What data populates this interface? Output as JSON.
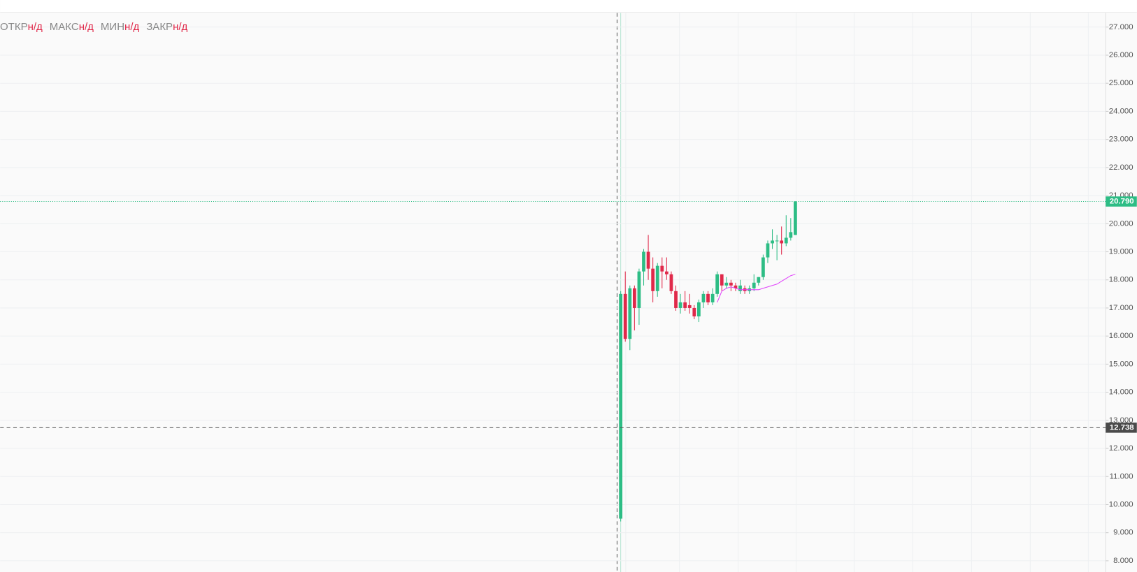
{
  "chart_data": {
    "type": "candlestick",
    "ohlc_legend": [
      {
        "label": "ОТКР",
        "value": "н/д"
      },
      {
        "label": "МАКС",
        "value": "н/д"
      },
      {
        "label": "МИН",
        "value": "н/д"
      },
      {
        "label": "ЗАКР",
        "value": "н/д"
      }
    ],
    "up_color": "#2dbd85",
    "down_color": "#e0294a",
    "open": [
      9.5,
      17.5,
      15.9,
      17.7,
      17.0,
      18.3,
      19.0,
      18.4,
      17.6,
      18.5,
      18.3,
      18.2,
      17.6,
      17.0,
      17.2,
      17.1,
      17.0,
      16.7,
      17.2,
      17.5,
      17.2,
      17.5,
      18.2,
      17.8,
      17.9,
      17.8,
      17.6,
      17.7,
      17.6,
      17.7,
      17.9,
      18.1,
      18.8,
      19.3,
      19.4,
      19.4,
      19.3,
      19.5,
      19.6
    ],
    "high": [
      17.6,
      18.3,
      17.8,
      17.8,
      18.4,
      19.1,
      19.6,
      18.8,
      18.6,
      18.8,
      18.8,
      18.3,
      17.8,
      17.5,
      17.6,
      17.5,
      17.1,
      17.3,
      17.6,
      17.6,
      17.7,
      18.3,
      18.2,
      18.1,
      18.0,
      17.9,
      18.0,
      17.8,
      17.8,
      18.2,
      18.1,
      18.9,
      19.4,
      19.8,
      19.6,
      19.9,
      20.3,
      20.2,
      20.8
    ],
    "low": [
      9.4,
      15.8,
      15.5,
      16.2,
      16.4,
      17.8,
      18.0,
      17.2,
      17.4,
      17.7,
      18.0,
      17.5,
      16.9,
      16.8,
      16.9,
      16.8,
      16.6,
      16.5,
      17.0,
      17.1,
      17.1,
      17.4,
      17.6,
      17.7,
      17.6,
      17.6,
      17.5,
      17.5,
      17.5,
      17.6,
      17.8,
      18.0,
      18.6,
      19.1,
      18.7,
      18.9,
      19.2,
      19.4,
      19.6
    ],
    "close": [
      17.5,
      15.9,
      17.7,
      17.0,
      18.3,
      19.0,
      18.4,
      17.6,
      18.5,
      18.3,
      18.2,
      17.6,
      17.0,
      17.2,
      17.0,
      17.0,
      16.7,
      17.2,
      17.5,
      17.2,
      17.5,
      18.2,
      17.8,
      17.9,
      17.8,
      17.7,
      17.8,
      17.6,
      17.7,
      17.9,
      18.1,
      18.8,
      19.3,
      19.4,
      19.4,
      19.3,
      19.5,
      19.7,
      20.79
    ],
    "ma": {
      "color": "#e040fb",
      "values": [
        null,
        null,
        null,
        null,
        null,
        null,
        null,
        null,
        null,
        null,
        null,
        null,
        null,
        null,
        null,
        null,
        null,
        null,
        null,
        null,
        null,
        17.2,
        17.6,
        17.7,
        17.75,
        17.7,
        17.65,
        17.65,
        17.65,
        17.65,
        17.65,
        17.7,
        17.75,
        17.8,
        17.85,
        17.95,
        18.05,
        18.15,
        18.2
      ]
    },
    "ylim": [
      7.6,
      27.5
    ],
    "yticks": [
      {
        "value": 8,
        "label": "8.000"
      },
      {
        "value": 9,
        "label": "9.000"
      },
      {
        "value": 10,
        "label": "10.000"
      },
      {
        "value": 11,
        "label": "11.000"
      },
      {
        "value": 12,
        "label": "12.000"
      },
      {
        "value": 13,
        "label": "13.000"
      },
      {
        "value": 14,
        "label": "14.000"
      },
      {
        "value": 15,
        "label": "15.000"
      },
      {
        "value": 16,
        "label": "16.000"
      },
      {
        "value": 17,
        "label": "17.000"
      },
      {
        "value": 18,
        "label": "18.000"
      },
      {
        "value": 19,
        "label": "19.000"
      },
      {
        "value": 20,
        "label": "20.000"
      },
      {
        "value": 21,
        "label": "21.000"
      },
      {
        "value": 22,
        "label": "22.000"
      },
      {
        "value": 23,
        "label": "23.000"
      },
      {
        "value": 24,
        "label": "24.000"
      },
      {
        "value": 25,
        "label": "25.000"
      },
      {
        "value": 26,
        "label": "26.000"
      },
      {
        "value": 27,
        "label": "27.000"
      }
    ],
    "grid": true,
    "price_line": {
      "value": 20.79,
      "label": "20.790"
    },
    "crosshair": {
      "value": 12.738,
      "label": "12.738"
    }
  }
}
